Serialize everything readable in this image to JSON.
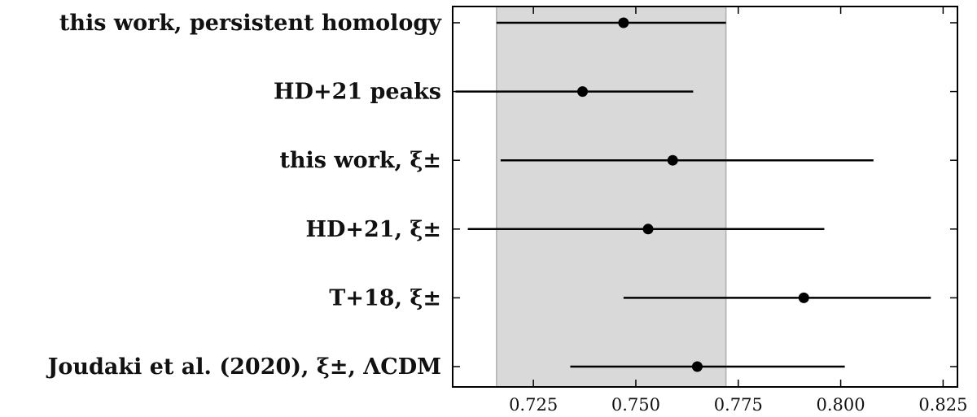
{
  "chart_data": {
    "type": "forest",
    "xlim": [
      0.7053,
      0.8285
    ],
    "xticks": [
      0.725,
      0.75,
      0.775,
      0.8,
      0.825
    ],
    "xtick_labels": [
      "0.725",
      "0.750",
      "0.775",
      "0.800",
      "0.825"
    ],
    "band": {
      "lo": 0.716,
      "hi": 0.772,
      "color": "#d9d9d9"
    },
    "colors": {
      "marker": "#000000",
      "band_edge": "#b0b0b0"
    },
    "rows": [
      {
        "label": "this work, persistent homology",
        "value": 0.747,
        "lo": 0.716,
        "hi": 0.772
      },
      {
        "label": "HD+21 peaks",
        "value": 0.737,
        "lo": 0.706,
        "hi": 0.764
      },
      {
        "label": "this work, ξ±",
        "value": 0.759,
        "lo": 0.717,
        "hi": 0.808
      },
      {
        "label": "HD+21, ξ±",
        "value": 0.753,
        "lo": 0.709,
        "hi": 0.796
      },
      {
        "label": "T+18, ξ±",
        "value": 0.791,
        "lo": 0.747,
        "hi": 0.822
      },
      {
        "label": "Joudaki et al. (2020), ξ±, ΛCDM",
        "value": 0.765,
        "lo": 0.734,
        "hi": 0.801
      }
    ]
  }
}
